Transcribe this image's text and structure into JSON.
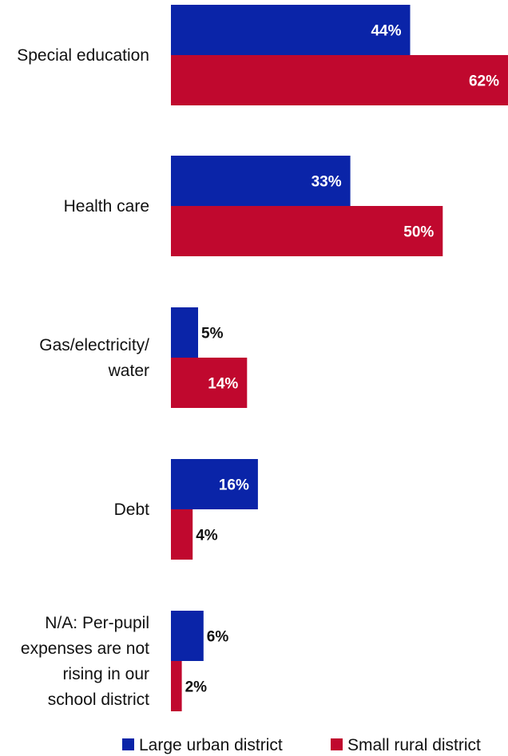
{
  "chart_data": {
    "type": "bar",
    "orientation": "horizontal",
    "categories": [
      [
        "Special education"
      ],
      [
        "Health care"
      ],
      [
        "Gas/electricity/",
        "water"
      ],
      [
        "Debt"
      ],
      [
        "N/A:  Per-pupil",
        "expenses are not",
        "rising in our",
        "school district"
      ]
    ],
    "series": [
      {
        "name": "Large urban district",
        "values": [
          44,
          33,
          5,
          16,
          6
        ],
        "labels": [
          "44%",
          "33%",
          "5%",
          "16%",
          "6%"
        ],
        "color": "#0A24A8"
      },
      {
        "name": "Small rural district",
        "values": [
          62,
          50,
          14,
          4,
          2
        ],
        "labels": [
          "62%",
          "50%",
          "14%",
          "4%",
          "2%"
        ],
        "color": "#C0082E"
      }
    ],
    "xlim": [
      0,
      62
    ],
    "legend": "bottom",
    "grid": false
  }
}
